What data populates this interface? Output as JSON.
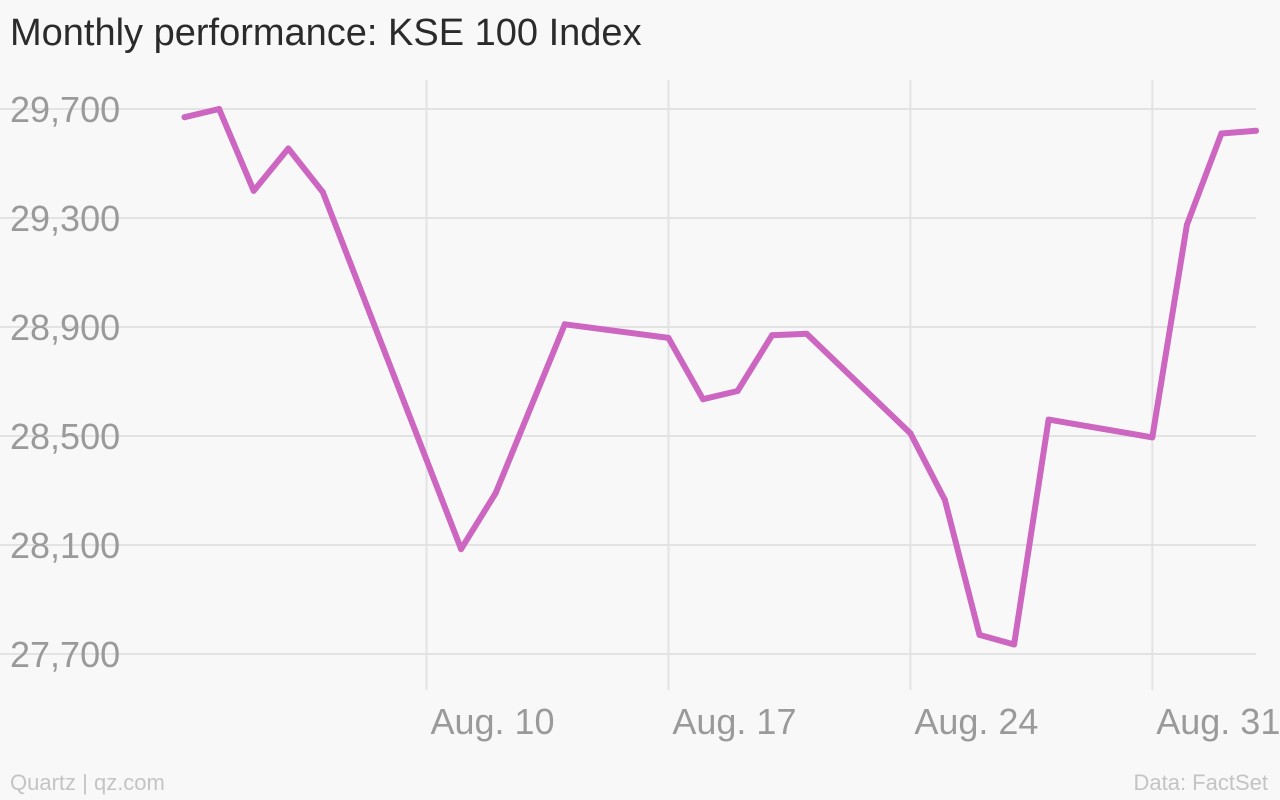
{
  "chart_data": {
    "type": "line",
    "title": "Monthly performance: KSE 100 Index",
    "xlabel": "",
    "ylabel": "",
    "x": [
      "2015-08-03",
      "2015-08-04",
      "2015-08-05",
      "2015-08-06",
      "2015-08-07",
      "2015-08-11",
      "2015-08-12",
      "2015-08-14",
      "2015-08-17",
      "2015-08-18",
      "2015-08-19",
      "2015-08-20",
      "2015-08-21",
      "2015-08-24",
      "2015-08-25",
      "2015-08-26",
      "2015-08-27",
      "2015-08-28",
      "2015-08-31",
      "2015-09-01",
      "2015-09-02",
      "2015-09-03"
    ],
    "series": [
      {
        "values": [
          29670,
          29700,
          29400,
          29555,
          29395,
          28085,
          28290,
          28910,
          28860,
          28635,
          28665,
          28870,
          28875,
          28510,
          28265,
          27770,
          27735,
          28560,
          28495,
          29275,
          29610,
          29620
        ]
      }
    ],
    "xticks": [
      "2015-08-10",
      "2015-08-17",
      "2015-08-24",
      "2015-08-31"
    ],
    "xtick_labels": [
      "Aug. 10",
      "Aug. 17",
      "Aug. 24",
      "Aug. 31"
    ],
    "yticks": [
      27700,
      28100,
      28500,
      28900,
      29300,
      29700
    ],
    "ytick_labels": [
      "27,700",
      "28,100",
      "28,500",
      "28,900",
      "29,300",
      "29,700"
    ],
    "ylim": [
      27700,
      29700
    ],
    "xlim": [
      "2015-08-02",
      "2015-09-03"
    ],
    "grid": true,
    "line_color": "#cc66c0"
  },
  "footer": {
    "source_left": "Quartz | qz.com",
    "source_right": "Data: FactSet"
  }
}
